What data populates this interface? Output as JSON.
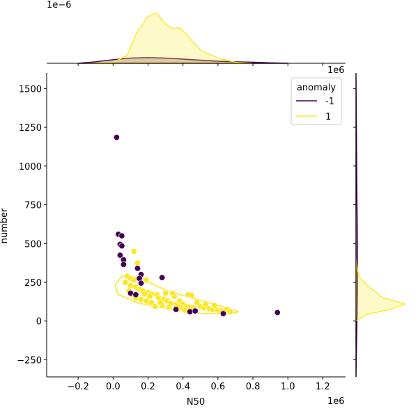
{
  "chart_data": {
    "type": "scatter",
    "title": "",
    "xlabel": "N50",
    "ylabel": "number",
    "x_offset_label": "1e6",
    "y_right_offset_label": "1e6",
    "top_offset_label": "1e−6",
    "xlim": [
      -0.38,
      1.33
    ],
    "ylim": [
      -360,
      1600
    ],
    "x_ticks": [
      -0.2,
      0.0,
      0.2,
      0.4,
      0.6,
      0.8,
      1.0,
      1.2
    ],
    "x_tick_labels": [
      "−0.2",
      "0.0",
      "0.2",
      "0.4",
      "0.6",
      "0.8",
      "1.0",
      "1.2"
    ],
    "y_ticks": [
      -250,
      0,
      250,
      500,
      750,
      1000,
      1250,
      1500
    ],
    "y_tick_labels": [
      "−250",
      "0",
      "250",
      "500",
      "750",
      "1000",
      "1250",
      "1500"
    ],
    "grid": false,
    "legend": {
      "title": "anomaly",
      "placement": "top-right",
      "entries": [
        {
          "label": "-1",
          "color": "#440154"
        },
        {
          "label": "1",
          "color": "#fde725"
        }
      ]
    },
    "series": [
      {
        "name": "-1",
        "color": "#440154",
        "points": [
          [
            0.02,
            1185
          ],
          [
            0.03,
            560
          ],
          [
            0.05,
            550
          ],
          [
            0.04,
            495
          ],
          [
            0.05,
            485
          ],
          [
            0.04,
            425
          ],
          [
            0.06,
            395
          ],
          [
            0.06,
            365
          ],
          [
            0.14,
            340
          ],
          [
            0.16,
            300
          ],
          [
            0.15,
            275
          ],
          [
            0.16,
            245
          ],
          [
            0.28,
            280
          ],
          [
            0.1,
            180
          ],
          [
            0.13,
            170
          ],
          [
            0.36,
            75
          ],
          [
            0.44,
            60
          ],
          [
            0.47,
            65
          ],
          [
            0.63,
            48
          ],
          [
            0.94,
            55
          ]
        ]
      },
      {
        "name": "1",
        "color": "#fde725",
        "points": [
          [
            0.12,
            450
          ],
          [
            0.14,
            375
          ],
          [
            0.08,
            290
          ],
          [
            0.1,
            275
          ],
          [
            0.12,
            265
          ],
          [
            0.19,
            265
          ],
          [
            0.07,
            250
          ],
          [
            0.1,
            230
          ],
          [
            0.13,
            220
          ],
          [
            0.15,
            205
          ],
          [
            0.17,
            195
          ],
          [
            0.2,
            185
          ],
          [
            0.22,
            175
          ],
          [
            0.25,
            170
          ],
          [
            0.09,
            195
          ],
          [
            0.11,
            170
          ],
          [
            0.13,
            150
          ],
          [
            0.16,
            140
          ],
          [
            0.19,
            130
          ],
          [
            0.22,
            120
          ],
          [
            0.26,
            150
          ],
          [
            0.29,
            140
          ],
          [
            0.31,
            130
          ],
          [
            0.33,
            115
          ],
          [
            0.35,
            160
          ],
          [
            0.38,
            130
          ],
          [
            0.4,
            110
          ],
          [
            0.42,
            95
          ],
          [
            0.44,
            90
          ],
          [
            0.46,
            85
          ],
          [
            0.48,
            120
          ],
          [
            0.5,
            95
          ],
          [
            0.52,
            85
          ],
          [
            0.55,
            80
          ],
          [
            0.57,
            75
          ],
          [
            0.6,
            70
          ],
          [
            0.62,
            65
          ],
          [
            0.65,
            75
          ],
          [
            0.67,
            60
          ],
          [
            0.3,
            180
          ],
          [
            0.34,
            180
          ],
          [
            0.43,
            170
          ],
          [
            0.45,
            165
          ],
          [
            0.24,
            95
          ],
          [
            0.28,
            100
          ],
          [
            0.32,
            90
          ],
          [
            0.36,
            105
          ],
          [
            0.39,
            85
          ],
          [
            0.41,
            70
          ],
          [
            0.53,
            110
          ],
          [
            0.58,
            100
          ],
          [
            0.21,
            160
          ],
          [
            0.18,
            175
          ],
          [
            0.27,
            120
          ],
          [
            0.37,
            95
          ]
        ]
      }
    ],
    "contour": {
      "series": "1",
      "points": [
        [
          0.01,
          230
        ],
        [
          0.05,
          290
        ],
        [
          0.15,
          280
        ],
        [
          0.3,
          200
        ],
        [
          0.45,
          150
        ],
        [
          0.62,
          95
        ],
        [
          0.72,
          60
        ],
        [
          0.65,
          45
        ],
        [
          0.5,
          50
        ],
        [
          0.33,
          75
        ],
        [
          0.15,
          115
        ],
        [
          0.03,
          170
        ],
        [
          0.01,
          230
        ]
      ]
    },
    "x_marginal": {
      "series": [
        {
          "name": "-1",
          "color": "#440154",
          "x": [
            -0.2,
            -0.1,
            0.0,
            0.1,
            0.2,
            0.3,
            0.4,
            0.5,
            0.6,
            0.7,
            0.8,
            0.9,
            1.0
          ],
          "density": [
            0.0,
            0.03,
            0.07,
            0.1,
            0.11,
            0.1,
            0.08,
            0.06,
            0.04,
            0.03,
            0.02,
            0.01,
            0.0
          ]
        },
        {
          "name": "1",
          "color": "#fde725",
          "x": [
            -0.15,
            0.0,
            0.08,
            0.13,
            0.2,
            0.25,
            0.3,
            0.34,
            0.38,
            0.42,
            0.5,
            0.6,
            0.7,
            0.8
          ],
          "density": [
            0.0,
            0.02,
            0.15,
            0.55,
            0.9,
            0.97,
            0.75,
            0.67,
            0.68,
            0.55,
            0.25,
            0.1,
            0.02,
            0.0
          ]
        }
      ]
    },
    "y_marginal": {
      "series": [
        {
          "name": "-1",
          "color": "#440154",
          "y": [
            -360,
            0,
            200,
            500,
            800,
            1200,
            1600
          ],
          "density": [
            0.0,
            0.02,
            0.03,
            0.03,
            0.02,
            0.01,
            0.0
          ]
        },
        {
          "name": "1",
          "color": "#fde725",
          "y": [
            0,
            40,
            80,
            110,
            150,
            190,
            230,
            280,
            330,
            400
          ],
          "density": [
            0.0,
            0.2,
            0.75,
            1.0,
            0.55,
            0.4,
            0.22,
            0.08,
            0.03,
            0.0
          ]
        }
      ]
    }
  }
}
